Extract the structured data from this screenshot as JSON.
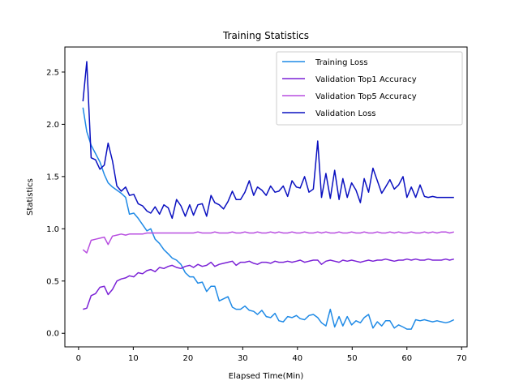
{
  "chart_data": {
    "type": "line",
    "title": "Training Statistics",
    "xlabel": "Elapsed Time(Min)",
    "ylabel": "Statistics",
    "xlim": [
      -2.5,
      71
    ],
    "ylim": [
      -0.13,
      2.74
    ],
    "xticks": [
      0,
      10,
      20,
      30,
      40,
      50,
      60,
      70
    ],
    "yticks": [
      0.0,
      0.5,
      1.0,
      1.5,
      2.0,
      2.5
    ],
    "grid": false,
    "legend_position": "top-right",
    "x": [
      0.8,
      1.5,
      2.3,
      3.1,
      3.9,
      4.7,
      5.4,
      6.2,
      7.0,
      7.8,
      8.6,
      9.3,
      10.1,
      10.9,
      11.7,
      12.5,
      13.2,
      14.0,
      14.8,
      15.6,
      16.4,
      17.1,
      17.9,
      18.7,
      19.5,
      20.3,
      21.0,
      21.8,
      22.6,
      23.4,
      24.2,
      24.9,
      25.7,
      26.5,
      27.3,
      28.1,
      28.8,
      29.6,
      30.4,
      31.2,
      32.0,
      32.7,
      33.5,
      34.3,
      35.1,
      35.9,
      36.6,
      37.4,
      38.2,
      39.0,
      39.8,
      40.5,
      41.3,
      42.1,
      42.9,
      43.7,
      44.4,
      45.2,
      46.0,
      46.8,
      47.6,
      48.3,
      49.1,
      49.9,
      50.7,
      51.5,
      52.2,
      53.0,
      53.8,
      54.6,
      55.4,
      56.1,
      56.9,
      57.7,
      58.5,
      59.3,
      60.0,
      60.8,
      61.6,
      62.4,
      63.2,
      63.9,
      64.7,
      65.5,
      66.3,
      67.1,
      67.8,
      68.6
    ],
    "series": [
      {
        "name": "Training Loss",
        "color": "#1f8ae6",
        "values": [
          2.16,
          1.93,
          1.8,
          1.72,
          1.64,
          1.52,
          1.44,
          1.4,
          1.37,
          1.34,
          1.3,
          1.14,
          1.15,
          1.1,
          1.04,
          0.98,
          1.0,
          0.9,
          0.86,
          0.8,
          0.76,
          0.72,
          0.7,
          0.66,
          0.58,
          0.54,
          0.54,
          0.48,
          0.49,
          0.4,
          0.45,
          0.45,
          0.31,
          0.33,
          0.35,
          0.25,
          0.23,
          0.23,
          0.26,
          0.22,
          0.21,
          0.18,
          0.22,
          0.16,
          0.15,
          0.19,
          0.12,
          0.11,
          0.16,
          0.15,
          0.17,
          0.14,
          0.13,
          0.17,
          0.18,
          0.15,
          0.1,
          0.07,
          0.23,
          0.06,
          0.16,
          0.07,
          0.16,
          0.08,
          0.12,
          0.1,
          0.15,
          0.18,
          0.05,
          0.11,
          0.07,
          0.12,
          0.12,
          0.05,
          0.08,
          0.06,
          0.04,
          0.04,
          0.13,
          0.12,
          0.13,
          0.12,
          0.11,
          0.12,
          0.11,
          0.1,
          0.11,
          0.13
        ]
      },
      {
        "name": "Validation Top1 Accuracy",
        "color": "#7b22d6",
        "values": [
          0.23,
          0.24,
          0.36,
          0.38,
          0.44,
          0.45,
          0.37,
          0.42,
          0.5,
          0.52,
          0.53,
          0.55,
          0.54,
          0.58,
          0.57,
          0.6,
          0.61,
          0.59,
          0.63,
          0.62,
          0.64,
          0.65,
          0.63,
          0.62,
          0.64,
          0.65,
          0.63,
          0.66,
          0.64,
          0.65,
          0.68,
          0.64,
          0.66,
          0.67,
          0.68,
          0.69,
          0.65,
          0.68,
          0.68,
          0.69,
          0.67,
          0.66,
          0.68,
          0.68,
          0.67,
          0.69,
          0.68,
          0.68,
          0.69,
          0.68,
          0.69,
          0.7,
          0.68,
          0.69,
          0.7,
          0.7,
          0.66,
          0.69,
          0.7,
          0.69,
          0.68,
          0.7,
          0.69,
          0.7,
          0.69,
          0.68,
          0.69,
          0.7,
          0.69,
          0.7,
          0.7,
          0.71,
          0.7,
          0.69,
          0.7,
          0.7,
          0.71,
          0.7,
          0.71,
          0.7,
          0.7,
          0.71,
          0.7,
          0.7,
          0.7,
          0.71,
          0.7,
          0.71
        ]
      },
      {
        "name": "Validation Top5 Accuracy",
        "color": "#b84ee0",
        "values": [
          0.8,
          0.77,
          0.89,
          0.9,
          0.91,
          0.92,
          0.85,
          0.93,
          0.94,
          0.95,
          0.94,
          0.95,
          0.95,
          0.95,
          0.95,
          0.96,
          0.96,
          0.96,
          0.96,
          0.96,
          0.96,
          0.96,
          0.96,
          0.96,
          0.96,
          0.96,
          0.96,
          0.97,
          0.96,
          0.96,
          0.96,
          0.97,
          0.96,
          0.96,
          0.96,
          0.97,
          0.96,
          0.96,
          0.97,
          0.96,
          0.96,
          0.97,
          0.96,
          0.96,
          0.97,
          0.96,
          0.97,
          0.96,
          0.96,
          0.97,
          0.96,
          0.96,
          0.97,
          0.96,
          0.96,
          0.97,
          0.96,
          0.97,
          0.96,
          0.96,
          0.97,
          0.96,
          0.96,
          0.97,
          0.96,
          0.96,
          0.97,
          0.96,
          0.96,
          0.97,
          0.96,
          0.96,
          0.97,
          0.96,
          0.97,
          0.96,
          0.96,
          0.97,
          0.96,
          0.96,
          0.97,
          0.96,
          0.97,
          0.96,
          0.97,
          0.97,
          0.96,
          0.97
        ]
      },
      {
        "name": "Validation Loss",
        "color": "#0a10c0",
        "values": [
          2.22,
          2.6,
          1.68,
          1.66,
          1.57,
          1.61,
          1.82,
          1.65,
          1.41,
          1.36,
          1.4,
          1.32,
          1.33,
          1.24,
          1.22,
          1.17,
          1.15,
          1.21,
          1.14,
          1.23,
          1.2,
          1.1,
          1.28,
          1.22,
          1.12,
          1.23,
          1.13,
          1.23,
          1.24,
          1.12,
          1.32,
          1.25,
          1.23,
          1.19,
          1.26,
          1.36,
          1.28,
          1.28,
          1.35,
          1.46,
          1.32,
          1.4,
          1.37,
          1.32,
          1.41,
          1.35,
          1.36,
          1.41,
          1.31,
          1.46,
          1.4,
          1.39,
          1.5,
          1.35,
          1.38,
          1.84,
          1.3,
          1.53,
          1.29,
          1.56,
          1.28,
          1.48,
          1.3,
          1.44,
          1.37,
          1.25,
          1.48,
          1.35,
          1.58,
          1.46,
          1.34,
          1.4,
          1.47,
          1.38,
          1.42,
          1.5,
          1.3,
          1.4,
          1.3,
          1.42,
          1.31,
          1.3,
          1.31,
          1.3,
          1.3,
          1.3,
          1.3,
          1.3
        ]
      }
    ]
  }
}
